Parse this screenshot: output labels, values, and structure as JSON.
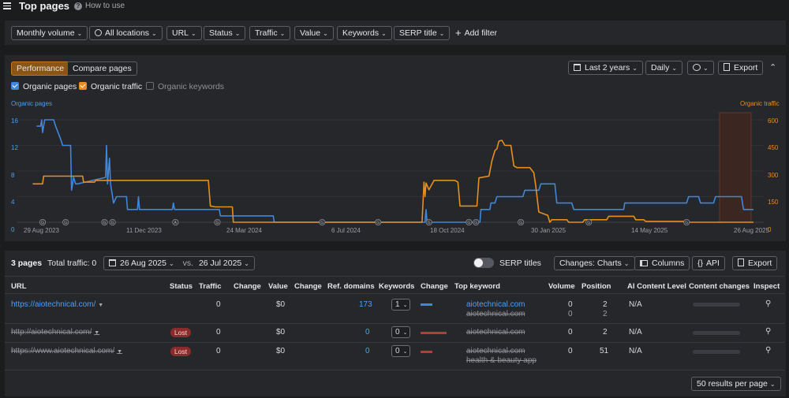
{
  "header": {
    "title": "Top pages",
    "how_to_use": "How to use"
  },
  "filters": {
    "monthly_volume": "Monthly volume",
    "all_locations": "All locations",
    "url": "URL",
    "status": "Status",
    "traffic": "Traffic",
    "value": "Value",
    "keywords": "Keywords",
    "serp_title": "SERP title",
    "add_filter": "Add filter"
  },
  "chart_panel": {
    "tab_performance": "Performance",
    "tab_compare": "Compare pages",
    "period": "Last 2 years",
    "granularity": "Daily",
    "export": "Export",
    "legend": {
      "organic_pages": "Organic pages",
      "organic_traffic": "Organic traffic",
      "organic_keywords": "Organic keywords"
    }
  },
  "chart_data": {
    "type": "line",
    "left_axis_label": "Organic pages",
    "right_axis_label": "Organic traffic",
    "left_ticks": [
      "16",
      "12",
      "8",
      "4",
      "0"
    ],
    "right_ticks": [
      "600",
      "450",
      "300",
      "150",
      "0"
    ],
    "ylim_left": [
      0,
      16
    ],
    "ylim_right": [
      0,
      600
    ],
    "x_labels": [
      "29 Aug 2023",
      "11 Dec 2023",
      "24 Mar 2024",
      "6 Jul 2024",
      "18 Oct 2024",
      "30 Jan 2025",
      "14 May 2025",
      "26 Aug 2025"
    ],
    "x_range": [
      "2023-08-26",
      "2025-08-26"
    ],
    "grid": true,
    "legend": "top-left",
    "annotation_letters": [
      "G",
      "G",
      "G",
      "G",
      "A",
      "G",
      "G",
      "G",
      "G",
      "G",
      "G",
      "G",
      "G",
      "G"
    ],
    "annotation_dates": [
      "2023-09-14",
      "2023-10-07",
      "2023-11-15",
      "2023-11-23",
      "2024-01-25",
      "2024-03-07",
      "2024-06-20",
      "2024-08-15",
      "2024-10-05",
      "2024-11-14",
      "2024-11-21",
      "2025-01-05",
      "2025-03-14",
      "2025-06-20"
    ],
    "series": [
      {
        "name": "Organic pages",
        "color": "#3d87dc",
        "points": [
          [
            "2023-09-08",
            15
          ],
          [
            "2023-09-12",
            15
          ],
          [
            "2023-09-13",
            16
          ],
          [
            "2023-09-14",
            14
          ],
          [
            "2023-09-16",
            16
          ],
          [
            "2023-09-25",
            16
          ],
          [
            "2023-09-27",
            15
          ],
          [
            "2023-10-02",
            13
          ],
          [
            "2023-10-04",
            12
          ],
          [
            "2023-10-12",
            12
          ],
          [
            "2023-10-13",
            5
          ],
          [
            "2023-10-15",
            7
          ],
          [
            "2023-10-17",
            6
          ],
          [
            "2023-10-19",
            6
          ],
          [
            "2023-11-16",
            7
          ],
          [
            "2023-11-17",
            12
          ],
          [
            "2023-11-18",
            6
          ],
          [
            "2023-11-20",
            10
          ],
          [
            "2023-11-21",
            6
          ],
          [
            "2023-11-24",
            3
          ],
          [
            "2023-11-27",
            4
          ],
          [
            "2023-12-07",
            4
          ],
          [
            "2023-12-08",
            2
          ],
          [
            "2023-12-18",
            2
          ],
          [
            "2023-12-19",
            4
          ],
          [
            "2023-12-20",
            2
          ],
          [
            "2024-01-22",
            2
          ],
          [
            "2024-01-23",
            3
          ],
          [
            "2024-01-24",
            2
          ],
          [
            "2024-03-09",
            2
          ],
          [
            "2024-03-10",
            1
          ],
          [
            "2024-05-02",
            1
          ],
          [
            "2024-05-03",
            0
          ],
          [
            "2024-10-01",
            0
          ],
          [
            "2024-10-02",
            2
          ],
          [
            "2024-10-03",
            0
          ],
          [
            "2024-11-25",
            0
          ],
          [
            "2024-11-26",
            2
          ],
          [
            "2024-12-05",
            2
          ],
          [
            "2024-12-06",
            3
          ],
          [
            "2024-12-10",
            3
          ],
          [
            "2024-12-12",
            4
          ],
          [
            "2025-01-07",
            4
          ],
          [
            "2025-01-09",
            5
          ],
          [
            "2025-01-23",
            5
          ],
          [
            "2025-01-25",
            6
          ],
          [
            "2025-02-08",
            6
          ],
          [
            "2025-02-10",
            3
          ],
          [
            "2025-02-25",
            3
          ],
          [
            "2025-02-27",
            2
          ],
          [
            "2025-04-18",
            2
          ],
          [
            "2025-04-19",
            3
          ],
          [
            "2025-06-20",
            3
          ],
          [
            "2025-06-22",
            4
          ],
          [
            "2025-07-02",
            4
          ],
          [
            "2025-07-04",
            3
          ],
          [
            "2025-07-17",
            3
          ],
          [
            "2025-07-19",
            4
          ],
          [
            "2025-08-14",
            4
          ],
          [
            "2025-08-16",
            2
          ],
          [
            "2025-08-26",
            2
          ]
        ]
      },
      {
        "name": "Organic traffic",
        "color": "#e88e1f",
        "points": [
          [
            "2023-09-04",
            225
          ],
          [
            "2023-09-14",
            225
          ],
          [
            "2023-09-15",
            270
          ],
          [
            "2023-10-24",
            270
          ],
          [
            "2023-10-25",
            235
          ],
          [
            "2023-11-05",
            235
          ],
          [
            "2023-11-06",
            245
          ],
          [
            "2024-02-27",
            245
          ],
          [
            "2024-02-29",
            95
          ],
          [
            "2024-03-05",
            90
          ],
          [
            "2024-03-22",
            90
          ],
          [
            "2024-03-23",
            0
          ],
          [
            "2024-09-28",
            0
          ],
          [
            "2024-09-30",
            235
          ],
          [
            "2024-10-01",
            150
          ],
          [
            "2024-10-02",
            230
          ],
          [
            "2024-10-05",
            190
          ],
          [
            "2024-10-10",
            245
          ],
          [
            "2024-10-31",
            245
          ],
          [
            "2024-11-03",
            235
          ],
          [
            "2024-11-05",
            95
          ],
          [
            "2024-11-22",
            95
          ],
          [
            "2024-11-24",
            260
          ],
          [
            "2024-12-04",
            270
          ],
          [
            "2024-12-07",
            360
          ],
          [
            "2024-12-10",
            420
          ],
          [
            "2024-12-12",
            430
          ],
          [
            "2024-12-14",
            475
          ],
          [
            "2024-12-17",
            480
          ],
          [
            "2024-12-20",
            450
          ],
          [
            "2024-12-26",
            450
          ],
          [
            "2024-12-29",
            330
          ],
          [
            "2025-01-01",
            320
          ],
          [
            "2025-01-14",
            320
          ],
          [
            "2025-01-18",
            290
          ],
          [
            "2025-01-20",
            210
          ],
          [
            "2025-01-23",
            60
          ],
          [
            "2025-02-01",
            40
          ],
          [
            "2025-02-03",
            0
          ],
          [
            "2025-02-05",
            15
          ],
          [
            "2025-02-20",
            15
          ],
          [
            "2025-02-22",
            0
          ],
          [
            "2025-03-08",
            0
          ],
          [
            "2025-03-10",
            15
          ],
          [
            "2025-04-01",
            15
          ],
          [
            "2025-04-03",
            35
          ],
          [
            "2025-04-28",
            35
          ],
          [
            "2025-04-30",
            15
          ],
          [
            "2025-05-08",
            15
          ],
          [
            "2025-05-10",
            5
          ],
          [
            "2025-06-18",
            5
          ],
          [
            "2025-06-20",
            0
          ],
          [
            "2025-08-26",
            0
          ]
        ]
      }
    ]
  },
  "table_bar": {
    "count": "3 pages",
    "total_traffic": "Total traffic: 0",
    "date_a": "26 Aug 2025",
    "vs": "vs.",
    "date_b": "26 Jul 2025",
    "serp_titles": "SERP titles",
    "changes": "Changes: Charts",
    "columns": "Columns",
    "api": "API",
    "export": "Export"
  },
  "columns": [
    "URL",
    "Status",
    "Traffic",
    "Change",
    "Value",
    "Change",
    "Ref. domains",
    "Keywords",
    "Change",
    "Top keyword",
    "Volume",
    "Position",
    "AI Content Level",
    "Content changes",
    "Inspect"
  ],
  "rows": [
    {
      "url": "https://aiotechnical.com/",
      "status": "",
      "traffic": "0",
      "value": "$0",
      "ref_domains": "173",
      "keywords": "1",
      "top_keyword": "aiotechnical.com",
      "prev_keyword": "aiotechnical.com",
      "volume": "0",
      "prev_volume": "0",
      "position": "2",
      "prev_position": "2",
      "ai_level": "N/A"
    },
    {
      "url": "http://aiotechnical.com/",
      "status": "Lost",
      "traffic": "0",
      "value": "$0",
      "ref_domains": "0",
      "keywords": "0",
      "top_keyword": "aiotechnical.com",
      "volume": "0",
      "position": "2",
      "ai_level": "N/A"
    },
    {
      "url": "https://www.aiotechnical.com/",
      "status": "Lost",
      "traffic": "0",
      "value": "$0",
      "ref_domains": "0",
      "keywords": "0",
      "top_keyword": "aiotechnical.com",
      "prev_keyword": "health & beauty app",
      "volume": "0",
      "position": "51",
      "ai_level": "N/A"
    }
  ],
  "pagination": {
    "per_page": "50 results per page"
  }
}
